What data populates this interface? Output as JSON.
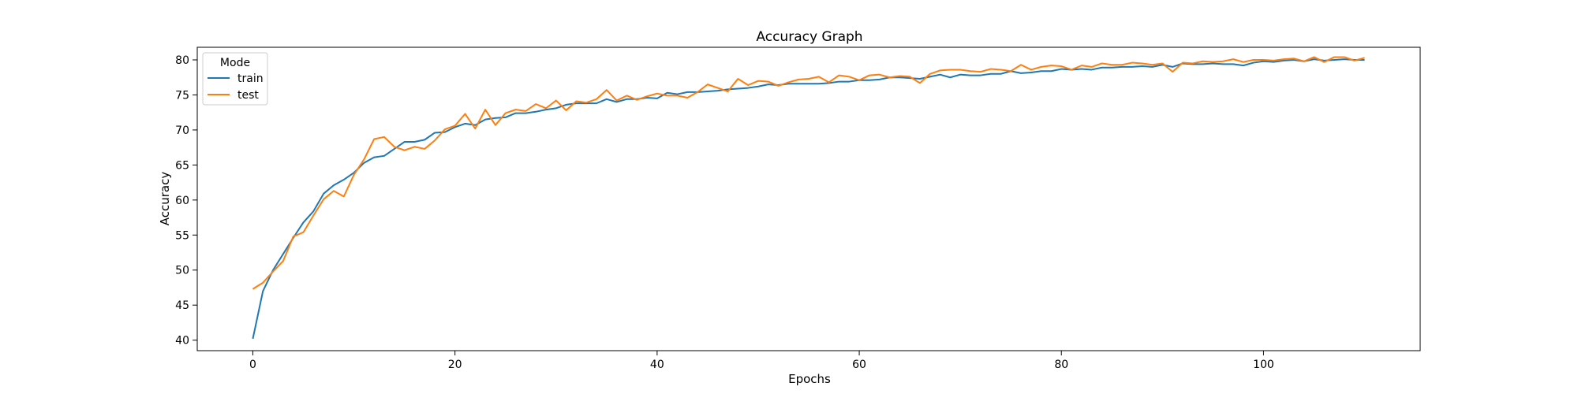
{
  "chart_data": {
    "type": "line",
    "title": "Accuracy Graph",
    "xlabel": "Epochs",
    "ylabel": "Accuracy",
    "xlim": [
      -5.5,
      115.5
    ],
    "ylim": [
      38.5,
      81.8
    ],
    "xticks": [
      0,
      20,
      40,
      60,
      80,
      100
    ],
    "yticks": [
      40,
      45,
      50,
      55,
      60,
      65,
      70,
      75,
      80
    ],
    "grid": false,
    "legend": {
      "title": "Mode",
      "placement": "top-left"
    },
    "x": [
      0,
      1,
      2,
      3,
      4,
      5,
      6,
      7,
      8,
      9,
      10,
      11,
      12,
      13,
      14,
      15,
      16,
      17,
      18,
      19,
      20,
      21,
      22,
      23,
      24,
      25,
      26,
      27,
      28,
      29,
      30,
      31,
      32,
      33,
      34,
      35,
      36,
      37,
      38,
      39,
      40,
      41,
      42,
      43,
      44,
      45,
      46,
      47,
      48,
      49,
      50,
      51,
      52,
      53,
      54,
      55,
      56,
      57,
      58,
      59,
      60,
      61,
      62,
      63,
      64,
      65,
      66,
      67,
      68,
      69,
      70,
      71,
      72,
      73,
      74,
      75,
      76,
      77,
      78,
      79,
      80,
      81,
      82,
      83,
      84,
      85,
      86,
      87,
      88,
      89,
      90,
      91,
      92,
      93,
      94,
      95,
      96,
      97,
      98,
      99,
      100,
      101,
      102,
      103,
      104,
      105,
      106,
      107,
      108,
      109,
      110
    ],
    "series": [
      {
        "name": "train",
        "color": "#1f77b4",
        "values": [
          40.2,
          47.0,
          50.0,
          52.3,
          54.6,
          56.8,
          58.4,
          60.9,
          62.1,
          62.9,
          63.9,
          65.3,
          66.1,
          66.3,
          67.3,
          68.3,
          68.3,
          68.6,
          69.6,
          69.7,
          70.4,
          70.9,
          70.7,
          71.5,
          71.7,
          71.8,
          72.4,
          72.4,
          72.6,
          72.9,
          73.1,
          73.6,
          73.8,
          73.8,
          73.8,
          74.4,
          74.0,
          74.4,
          74.4,
          74.6,
          74.5,
          75.3,
          75.1,
          75.4,
          75.4,
          75.5,
          75.6,
          75.8,
          75.9,
          76.0,
          76.2,
          76.5,
          76.4,
          76.6,
          76.6,
          76.6,
          76.6,
          76.7,
          76.9,
          76.9,
          77.1,
          77.1,
          77.2,
          77.5,
          77.5,
          77.4,
          77.3,
          77.6,
          77.9,
          77.5,
          77.9,
          77.8,
          77.8,
          78.0,
          78.0,
          78.4,
          78.1,
          78.2,
          78.4,
          78.4,
          78.7,
          78.6,
          78.7,
          78.6,
          78.9,
          78.9,
          79.0,
          79.0,
          79.1,
          79.0,
          79.3,
          79.0,
          79.5,
          79.4,
          79.4,
          79.5,
          79.4,
          79.4,
          79.2,
          79.6,
          79.8,
          79.7,
          79.9,
          80.0,
          79.8,
          80.1,
          79.9,
          80.0,
          80.1,
          80.0,
          80.0
        ]
      },
      {
        "name": "test",
        "color": "#ff7f0e",
        "values": [
          47.3,
          48.2,
          49.8,
          51.3,
          54.8,
          55.4,
          57.8,
          60.1,
          61.3,
          60.5,
          63.6,
          65.8,
          68.7,
          69.0,
          67.6,
          67.1,
          67.6,
          67.3,
          68.5,
          70.1,
          70.6,
          72.3,
          70.2,
          72.9,
          70.7,
          72.4,
          72.9,
          72.7,
          73.7,
          73.1,
          74.2,
          72.8,
          74.1,
          73.9,
          74.4,
          75.7,
          74.2,
          74.9,
          74.3,
          74.8,
          75.2,
          74.9,
          74.9,
          74.6,
          75.4,
          76.5,
          76.0,
          75.5,
          77.3,
          76.4,
          77.0,
          76.9,
          76.3,
          76.8,
          77.2,
          77.3,
          77.6,
          76.8,
          77.8,
          77.6,
          77.1,
          77.8,
          77.9,
          77.5,
          77.7,
          77.6,
          76.7,
          78.0,
          78.5,
          78.6,
          78.6,
          78.4,
          78.3,
          78.7,
          78.6,
          78.4,
          79.3,
          78.6,
          79.0,
          79.2,
          79.1,
          78.6,
          79.2,
          79.0,
          79.5,
          79.3,
          79.3,
          79.6,
          79.5,
          79.3,
          79.5,
          78.3,
          79.6,
          79.5,
          79.8,
          79.7,
          79.8,
          80.1,
          79.7,
          80.0,
          80.0,
          79.9,
          80.1,
          80.2,
          79.8,
          80.4,
          79.7,
          80.4,
          80.4,
          79.9,
          80.3
        ]
      }
    ]
  }
}
